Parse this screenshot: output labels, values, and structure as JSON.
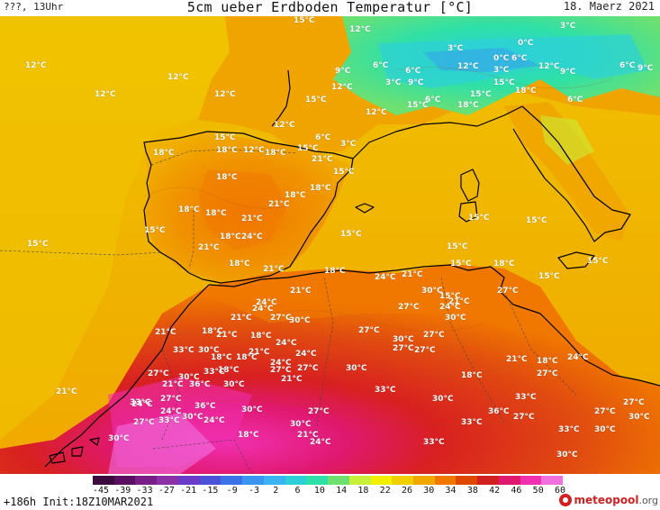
{
  "header": {
    "left_text": "???, 13Uhr",
    "title": "5cm ueber Erdboden Temperatur [°C]",
    "date": "18. Maerz 2021"
  },
  "footer": {
    "run_info": "+186h  Init:18Z10MAR2021",
    "brand_main": "meteopool",
    "brand_suffix": ".org"
  },
  "legend": {
    "ticks": [
      "-45",
      "-39",
      "-33",
      "-27",
      "-21",
      "-15",
      "-9",
      "-3",
      "2",
      "6",
      "10",
      "14",
      "18",
      "22",
      "26",
      "30",
      "34",
      "38",
      "42",
      "46",
      "50",
      "60"
    ],
    "colors": [
      "#3c0a3c",
      "#5a1060",
      "#781e86",
      "#8c30a8",
      "#6a3cc8",
      "#4a52d8",
      "#3a72e8",
      "#3a94f0",
      "#3ab4f0",
      "#2ed0d8",
      "#2ee0a8",
      "#6ee070",
      "#c8f03a",
      "#f0f000",
      "#f0d000",
      "#f0a800",
      "#f07800",
      "#e04800",
      "#d02020",
      "#e01870",
      "#f030b0",
      "#f070e0"
    ]
  },
  "map_labels": [
    {
      "t": "12°C"
    },
    {
      "t": "12°C"
    },
    {
      "t": "12°C"
    },
    {
      "t": "12°C"
    },
    {
      "t": "15°C"
    },
    {
      "t": "12°C"
    },
    {
      "t": "3°C"
    },
    {
      "t": "0°C"
    },
    {
      "t": "3°C"
    },
    {
      "t": "6°C"
    },
    {
      "t": "9°C"
    },
    {
      "t": "12°C"
    },
    {
      "t": "15°C"
    },
    {
      "t": "6°C"
    },
    {
      "t": "3°C"
    },
    {
      "t": "9°C"
    },
    {
      "t": "6°C"
    },
    {
      "t": "0°C"
    },
    {
      "t": "6°C"
    },
    {
      "t": "3°C"
    },
    {
      "t": "12°C"
    },
    {
      "t": "9°C"
    },
    {
      "t": "6°C"
    },
    {
      "t": "9°C"
    },
    {
      "t": "15°C"
    },
    {
      "t": "18°C"
    },
    {
      "t": "12°C"
    },
    {
      "t": "15°C"
    },
    {
      "t": "6°C"
    },
    {
      "t": "12°C"
    },
    {
      "t": "15°C"
    },
    {
      "t": "18°C"
    },
    {
      "t": "12°C"
    },
    {
      "t": "15°C"
    },
    {
      "t": "18°C"
    },
    {
      "t": "6°C"
    },
    {
      "t": "18°C"
    },
    {
      "t": "12°C"
    },
    {
      "t": "18°C"
    },
    {
      "t": "15°C"
    },
    {
      "t": "3°C"
    },
    {
      "t": "21°C"
    },
    {
      "t": "15°C"
    },
    {
      "t": "18°C"
    },
    {
      "t": "18°C"
    },
    {
      "t": "18°C"
    },
    {
      "t": "21°C"
    },
    {
      "t": "18°C"
    },
    {
      "t": "18°C"
    },
    {
      "t": "21°C"
    },
    {
      "t": "15°C"
    },
    {
      "t": "15°C"
    },
    {
      "t": "15°C"
    },
    {
      "t": "15°C"
    },
    {
      "t": "18°C"
    },
    {
      "t": "24°C"
    },
    {
      "t": "15°C"
    },
    {
      "t": "21°C"
    },
    {
      "t": "15°C"
    },
    {
      "t": "18°C"
    },
    {
      "t": "21°C"
    },
    {
      "t": "18°C"
    },
    {
      "t": "15°C"
    },
    {
      "t": "15°C"
    },
    {
      "t": "18°C"
    },
    {
      "t": "24°C"
    },
    {
      "t": "21°C"
    },
    {
      "t": "15°C"
    },
    {
      "t": "21°C"
    },
    {
      "t": "27°C"
    },
    {
      "t": "15°C"
    },
    {
      "t": "24°C"
    },
    {
      "t": "21°C"
    },
    {
      "t": "24°C"
    },
    {
      "t": "27°C"
    },
    {
      "t": "30°C"
    },
    {
      "t": "24°C"
    },
    {
      "t": "21°C"
    },
    {
      "t": "21°C"
    },
    {
      "t": "18°C"
    },
    {
      "t": "27°C"
    },
    {
      "t": "30°C"
    },
    {
      "t": "27°C"
    },
    {
      "t": "27°C"
    },
    {
      "t": "30°C"
    },
    {
      "t": "21°C"
    },
    {
      "t": "24°C"
    },
    {
      "t": "18°C"
    },
    {
      "t": "30°C"
    },
    {
      "t": "24°C"
    },
    {
      "t": "18°C"
    },
    {
      "t": "18°C"
    },
    {
      "t": "33°C"
    },
    {
      "t": "30°C"
    },
    {
      "t": "27°C"
    },
    {
      "t": "27°C"
    },
    {
      "t": "27°C"
    },
    {
      "t": "21°C"
    },
    {
      "t": "24°C"
    },
    {
      "t": "18°C"
    },
    {
      "t": "27°C"
    },
    {
      "t": "21°C"
    },
    {
      "t": "18°C"
    },
    {
      "t": "33°C"
    },
    {
      "t": "30°C"
    },
    {
      "t": "36°C"
    },
    {
      "t": "27°C"
    },
    {
      "t": "30°C"
    },
    {
      "t": "27°C"
    },
    {
      "t": "24°C"
    },
    {
      "t": "21°C"
    },
    {
      "t": "21°C"
    },
    {
      "t": "18°C"
    },
    {
      "t": "30°C"
    },
    {
      "t": "33°C"
    },
    {
      "t": "30°C"
    },
    {
      "t": "33°C"
    },
    {
      "t": "27°C"
    },
    {
      "t": "27°C"
    },
    {
      "t": "27°C"
    },
    {
      "t": "21°C"
    },
    {
      "t": "24°C"
    },
    {
      "t": "24°C"
    },
    {
      "t": "36°C"
    },
    {
      "t": "30°C"
    },
    {
      "t": "33°C"
    },
    {
      "t": "36°C"
    },
    {
      "t": "30°C"
    },
    {
      "t": "27°C"
    },
    {
      "t": "30°C"
    },
    {
      "t": "24°C"
    },
    {
      "t": "27°C"
    },
    {
      "t": "18°C"
    },
    {
      "t": "24°C"
    },
    {
      "t": "21°C"
    },
    {
      "t": "30°C"
    },
    {
      "t": "33°C"
    },
    {
      "t": "30°C"
    },
    {
      "t": "33°C"
    },
    {
      "t": "30°C"
    },
    {
      "t": "33°C"
    },
    {
      "t": "30°C"
    },
    {
      "t": "33°C"
    },
    {
      "t": "27°C"
    }
  ]
}
